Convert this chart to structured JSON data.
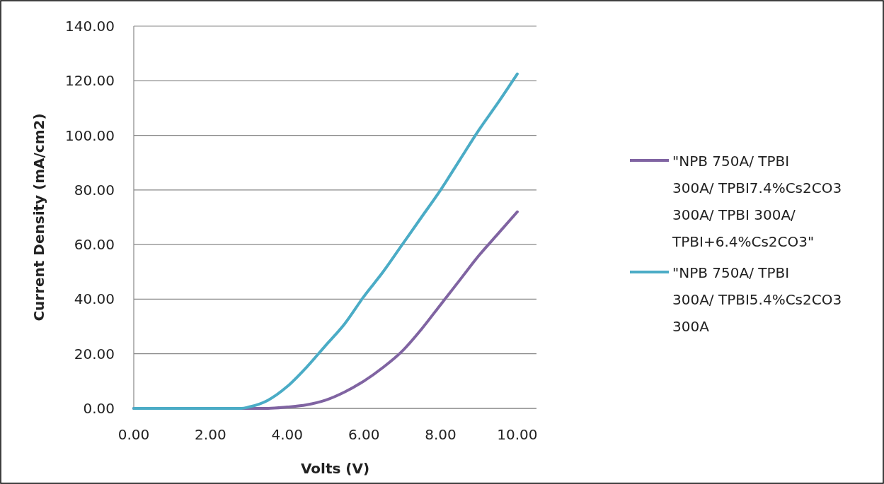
{
  "chart_data": {
    "type": "line",
    "xlabel": "Volts (V)",
    "ylabel": "Current Density (mA/cm2)",
    "xlim": [
      0,
      10.5
    ],
    "ylim": [
      0,
      140
    ],
    "xticks": [
      {
        "value": 0,
        "label": "0.00"
      },
      {
        "value": 2,
        "label": "2.00"
      },
      {
        "value": 4,
        "label": "4.00"
      },
      {
        "value": 6,
        "label": "6.00"
      },
      {
        "value": 8,
        "label": "8.00"
      },
      {
        "value": 10,
        "label": "10.00"
      }
    ],
    "yticks": [
      {
        "value": 0,
        "label": "0.00"
      },
      {
        "value": 20,
        "label": "20.00"
      },
      {
        "value": 40,
        "label": "40.00"
      },
      {
        "value": 60,
        "label": "60.00"
      },
      {
        "value": 80,
        "label": "80.00"
      },
      {
        "value": 100,
        "label": "100.00"
      },
      {
        "value": 120,
        "label": "120.00"
      },
      {
        "value": 140,
        "label": "140.00"
      }
    ],
    "grid": "y",
    "legend": "right",
    "marker": "none",
    "line_style": "solid",
    "series": [
      {
        "name": "\"NPB 750A/ TPBI 300A/ TPBI7.4%Cs2CO3 300A/ TPBI 300A/ TPBI+6.4%Cs2CO3\"",
        "color": "#8064a2",
        "x": [
          0,
          1,
          2,
          3,
          3.5,
          4,
          4.5,
          5,
          5.5,
          6,
          6.5,
          7,
          7.5,
          8,
          8.5,
          9,
          9.5,
          10
        ],
        "values": [
          0,
          0,
          0,
          0,
          0,
          0.5,
          1.3,
          3,
          6,
          10,
          15,
          21,
          29,
          38,
          47,
          56,
          64,
          72
        ]
      },
      {
        "name": "\"NPB 750A/ TPBI 300A/ TPBI5.4%Cs2CO3 300A",
        "color": "#4bacc6",
        "x": [
          0,
          1,
          2,
          2.8,
          3,
          3.5,
          4,
          4.5,
          5,
          5.5,
          6,
          6.5,
          7,
          7.5,
          8,
          8.5,
          9,
          9.5,
          10
        ],
        "values": [
          0,
          0,
          0,
          0,
          0.5,
          3,
          8,
          15,
          23,
          31,
          41,
          50,
          60,
          70,
          80,
          91,
          102,
          112,
          122.5
        ]
      }
    ]
  }
}
